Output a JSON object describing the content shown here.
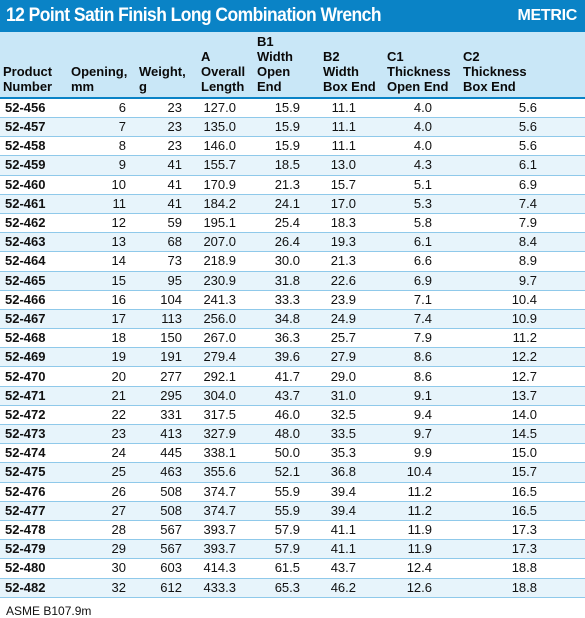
{
  "header": {
    "title": "12 Point Satin Finish Long Combination Wrench",
    "badge": "METRIC"
  },
  "columns": [
    {
      "key": "product",
      "lines": [
        "",
        "Product",
        "Number"
      ]
    },
    {
      "key": "opening",
      "lines": [
        "",
        "Opening,",
        "mm"
      ]
    },
    {
      "key": "weight",
      "lines": [
        "",
        "Weight,",
        "g"
      ]
    },
    {
      "key": "length",
      "lines": [
        "A",
        "Overall",
        "Length"
      ]
    },
    {
      "key": "b1",
      "lines": [
        "B1",
        "Width",
        "Open End"
      ]
    },
    {
      "key": "b2",
      "lines": [
        "B2",
        "Width",
        "Box End"
      ]
    },
    {
      "key": "c1",
      "lines": [
        "C1",
        "Thickness",
        "Open End"
      ]
    },
    {
      "key": "c2",
      "lines": [
        "C2",
        "Thickness",
        "Box End"
      ]
    }
  ],
  "rows": [
    [
      "52-456",
      "6",
      "23",
      "127.0",
      "15.9",
      "11.1",
      "4.0",
      "5.6"
    ],
    [
      "52-457",
      "7",
      "23",
      "135.0",
      "15.9",
      "11.1",
      "4.0",
      "5.6"
    ],
    [
      "52-458",
      "8",
      "23",
      "146.0",
      "15.9",
      "11.1",
      "4.0",
      "5.6"
    ],
    [
      "52-459",
      "9",
      "41",
      "155.7",
      "18.5",
      "13.0",
      "4.3",
      "6.1"
    ],
    [
      "52-460",
      "10",
      "41",
      "170.9",
      "21.3",
      "15.7",
      "5.1",
      "6.9"
    ],
    [
      "52-461",
      "11",
      "41",
      "184.2",
      "24.1",
      "17.0",
      "5.3",
      "7.4"
    ],
    [
      "52-462",
      "12",
      "59",
      "195.1",
      "25.4",
      "18.3",
      "5.8",
      "7.9"
    ],
    [
      "52-463",
      "13",
      "68",
      "207.0",
      "26.4",
      "19.3",
      "6.1",
      "8.4"
    ],
    [
      "52-464",
      "14",
      "73",
      "218.9",
      "30.0",
      "21.3",
      "6.6",
      "8.9"
    ],
    [
      "52-465",
      "15",
      "95",
      "230.9",
      "31.8",
      "22.6",
      "6.9",
      "9.7"
    ],
    [
      "52-466",
      "16",
      "104",
      "241.3",
      "33.3",
      "23.9",
      "7.1",
      "10.4"
    ],
    [
      "52-467",
      "17",
      "113",
      "256.0",
      "34.8",
      "24.9",
      "7.4",
      "10.9"
    ],
    [
      "52-468",
      "18",
      "150",
      "267.0",
      "36.3",
      "25.7",
      "7.9",
      "11.2"
    ],
    [
      "52-469",
      "19",
      "191",
      "279.4",
      "39.6",
      "27.9",
      "8.6",
      "12.2"
    ],
    [
      "52-470",
      "20",
      "277",
      "292.1",
      "41.7",
      "29.0",
      "8.6",
      "12.7"
    ],
    [
      "52-471",
      "21",
      "295",
      "304.0",
      "43.7",
      "31.0",
      "9.1",
      "13.7"
    ],
    [
      "52-472",
      "22",
      "331",
      "317.5",
      "46.0",
      "32.5",
      "9.4",
      "14.0"
    ],
    [
      "52-473",
      "23",
      "413",
      "327.9",
      "48.0",
      "33.5",
      "9.7",
      "14.5"
    ],
    [
      "52-474",
      "24",
      "445",
      "338.1",
      "50.0",
      "35.3",
      "9.9",
      "15.0"
    ],
    [
      "52-475",
      "25",
      "463",
      "355.6",
      "52.1",
      "36.8",
      "10.4",
      "15.7"
    ],
    [
      "52-476",
      "26",
      "508",
      "374.7",
      "55.9",
      "39.4",
      "11.2",
      "16.5"
    ],
    [
      "52-477",
      "27",
      "508",
      "374.7",
      "55.9",
      "39.4",
      "11.2",
      "16.5"
    ],
    [
      "52-478",
      "28",
      "567",
      "393.7",
      "57.9",
      "41.1",
      "11.9",
      "17.3"
    ],
    [
      "52-479",
      "29",
      "567",
      "393.7",
      "57.9",
      "41.1",
      "11.9",
      "17.3"
    ],
    [
      "52-480",
      "30",
      "603",
      "414.3",
      "61.5",
      "43.7",
      "12.4",
      "18.8"
    ],
    [
      "52-482",
      "32",
      "612",
      "433.3",
      "65.3",
      "46.2",
      "12.6",
      "18.8"
    ]
  ],
  "footnote": "ASME B107.9m",
  "colors": {
    "accent": "#0a83c6",
    "header_bg": "#c9e7f7",
    "stripe": "#e7f4fb",
    "rule": "#8fc9ea"
  }
}
